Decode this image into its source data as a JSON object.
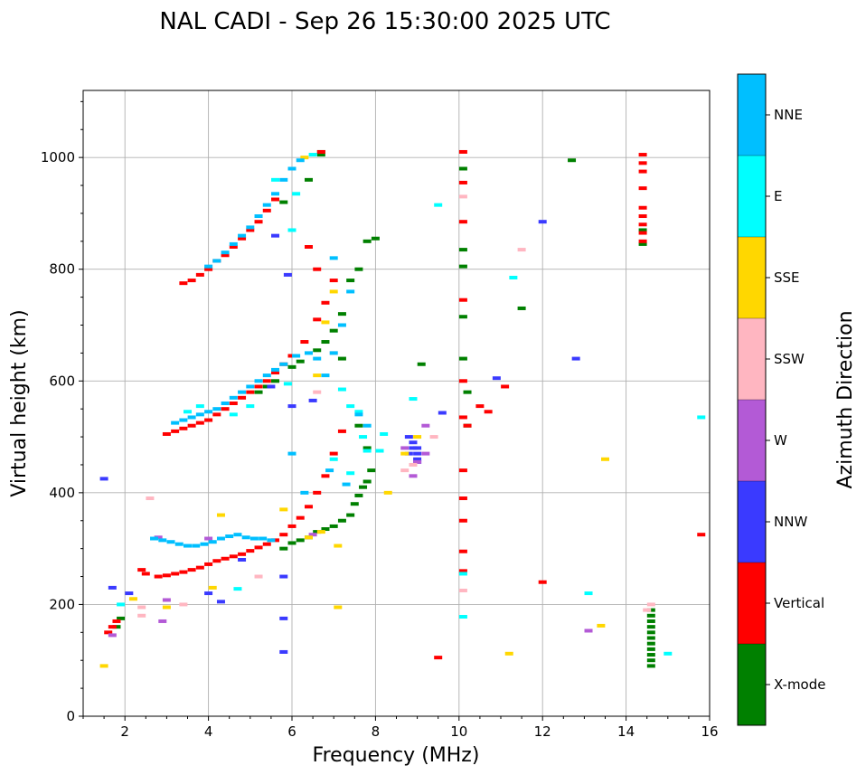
{
  "chart_data": {
    "type": "scatter",
    "title": "NAL CADI - Sep 26 15:30:00 2025 UTC",
    "xlabel": "Frequency (MHz)",
    "ylabel": "Virtual height (km)",
    "xlim": [
      1,
      16
    ],
    "ylim": [
      0,
      1120
    ],
    "xticks": [
      2,
      4,
      6,
      8,
      10,
      12,
      14,
      16
    ],
    "yticks": [
      0,
      200,
      400,
      600,
      800,
      1000
    ],
    "grid": true,
    "colorbar": {
      "label": "Azimuth Direction",
      "categories": [
        "X-mode",
        "Vertical",
        "NNW",
        "W",
        "SSW",
        "SSE",
        "E",
        "NNE"
      ],
      "colors": [
        "#008000",
        "#ff0000",
        "#3a3aff",
        "#b35ad6",
        "#ffb6c1",
        "#ffd700",
        "#00ffff",
        "#00bfff"
      ]
    },
    "series": [
      {
        "name": "X-mode",
        "points": [
          [
            1.8,
            160
          ],
          [
            1.9,
            175
          ],
          [
            5.8,
            300
          ],
          [
            6.0,
            310
          ],
          [
            6.2,
            315
          ],
          [
            6.4,
            320
          ],
          [
            6.6,
            330
          ],
          [
            6.8,
            335
          ],
          [
            7.0,
            340
          ],
          [
            7.2,
            350
          ],
          [
            7.4,
            360
          ],
          [
            7.5,
            380
          ],
          [
            7.6,
            395
          ],
          [
            7.7,
            410
          ],
          [
            7.8,
            420
          ],
          [
            7.9,
            440
          ],
          [
            5.2,
            580
          ],
          [
            5.4,
            590
          ],
          [
            5.6,
            600
          ],
          [
            6.0,
            625
          ],
          [
            6.2,
            635
          ],
          [
            6.6,
            655
          ],
          [
            6.8,
            670
          ],
          [
            7.0,
            690
          ],
          [
            7.2,
            720
          ],
          [
            7.4,
            780
          ],
          [
            7.6,
            800
          ],
          [
            7.8,
            850
          ],
          [
            8.0,
            855
          ],
          [
            7.2,
            640
          ],
          [
            7.6,
            520
          ],
          [
            7.8,
            480
          ],
          [
            5.8,
            920
          ],
          [
            6.4,
            960
          ],
          [
            6.7,
            1005
          ],
          [
            6.7,
            1010
          ],
          [
            10.1,
            980
          ],
          [
            10.1,
            835
          ],
          [
            10.1,
            805
          ],
          [
            10.1,
            715
          ],
          [
            10.1,
            640
          ],
          [
            10.2,
            580
          ],
          [
            10.2,
            520
          ],
          [
            11.5,
            730
          ],
          [
            12.7,
            995
          ],
          [
            9.1,
            630
          ],
          [
            14.6,
            190
          ],
          [
            14.6,
            180
          ],
          [
            14.6,
            170
          ],
          [
            14.6,
            160
          ],
          [
            14.6,
            150
          ],
          [
            14.6,
            140
          ],
          [
            14.6,
            130
          ],
          [
            14.6,
            120
          ],
          [
            14.6,
            110
          ],
          [
            14.6,
            100
          ],
          [
            14.6,
            90
          ],
          [
            14.4,
            870
          ],
          [
            14.4,
            845
          ]
        ]
      },
      {
        "name": "Vertical",
        "points": [
          [
            1.6,
            150
          ],
          [
            1.7,
            160
          ],
          [
            1.8,
            170
          ],
          [
            2.4,
            262
          ],
          [
            2.5,
            255
          ],
          [
            2.8,
            250
          ],
          [
            3.0,
            252
          ],
          [
            3.2,
            255
          ],
          [
            3.4,
            258
          ],
          [
            3.6,
            262
          ],
          [
            3.8,
            266
          ],
          [
            4.0,
            272
          ],
          [
            4.2,
            278
          ],
          [
            4.4,
            282
          ],
          [
            4.6,
            286
          ],
          [
            4.8,
            290
          ],
          [
            5.0,
            296
          ],
          [
            5.2,
            302
          ],
          [
            5.4,
            308
          ],
          [
            5.6,
            315
          ],
          [
            5.8,
            325
          ],
          [
            6.0,
            340
          ],
          [
            6.2,
            355
          ],
          [
            6.4,
            375
          ],
          [
            6.6,
            400
          ],
          [
            6.8,
            430
          ],
          [
            7.0,
            470
          ],
          [
            7.2,
            510
          ],
          [
            3.0,
            505
          ],
          [
            3.2,
            510
          ],
          [
            3.4,
            515
          ],
          [
            3.6,
            520
          ],
          [
            3.8,
            525
          ],
          [
            4.0,
            530
          ],
          [
            4.2,
            540
          ],
          [
            4.4,
            550
          ],
          [
            4.6,
            560
          ],
          [
            4.8,
            570
          ],
          [
            5.0,
            580
          ],
          [
            5.2,
            590
          ],
          [
            5.4,
            600
          ],
          [
            5.6,
            615
          ],
          [
            5.8,
            630
          ],
          [
            6.0,
            645
          ],
          [
            6.3,
            670
          ],
          [
            6.6,
            710
          ],
          [
            6.8,
            740
          ],
          [
            7.0,
            780
          ],
          [
            3.4,
            775
          ],
          [
            3.6,
            780
          ],
          [
            3.8,
            790
          ],
          [
            4.0,
            800
          ],
          [
            4.2,
            815
          ],
          [
            4.4,
            825
          ],
          [
            4.6,
            840
          ],
          [
            4.8,
            855
          ],
          [
            5.0,
            870
          ],
          [
            5.2,
            885
          ],
          [
            5.4,
            905
          ],
          [
            5.6,
            925
          ],
          [
            6.4,
            840
          ],
          [
            6.6,
            800
          ],
          [
            6.7,
            1010
          ],
          [
            10.1,
            1010
          ],
          [
            10.1,
            955
          ],
          [
            10.1,
            885
          ],
          [
            10.1,
            745
          ],
          [
            10.1,
            600
          ],
          [
            10.1,
            535
          ],
          [
            10.2,
            520
          ],
          [
            10.1,
            440
          ],
          [
            10.1,
            390
          ],
          [
            10.1,
            350
          ],
          [
            10.1,
            295
          ],
          [
            10.1,
            260
          ],
          [
            9.5,
            105
          ],
          [
            12.0,
            240
          ],
          [
            15.8,
            325
          ],
          [
            10.5,
            555
          ],
          [
            10.7,
            545
          ],
          [
            11.1,
            590
          ],
          [
            14.4,
            1005
          ],
          [
            14.4,
            990
          ],
          [
            14.4,
            975
          ],
          [
            14.4,
            945
          ],
          [
            14.4,
            910
          ],
          [
            14.4,
            895
          ],
          [
            14.4,
            880
          ],
          [
            14.4,
            865
          ],
          [
            14.4,
            850
          ]
        ]
      },
      {
        "name": "NNW",
        "points": [
          [
            1.5,
            425
          ],
          [
            1.7,
            230
          ],
          [
            2.1,
            220
          ],
          [
            4.0,
            220
          ],
          [
            4.3,
            205
          ],
          [
            6.0,
            555
          ],
          [
            6.5,
            565
          ],
          [
            8.8,
            500
          ],
          [
            8.9,
            490
          ],
          [
            8.9,
            480
          ],
          [
            9.0,
            470
          ],
          [
            9.0,
            460
          ],
          [
            8.8,
            470
          ],
          [
            9.0,
            480
          ],
          [
            9.0,
            455
          ],
          [
            9.6,
            543
          ],
          [
            10.9,
            605
          ],
          [
            12.8,
            640
          ],
          [
            5.8,
            115
          ],
          [
            5.8,
            175
          ],
          [
            5.8,
            250
          ],
          [
            4.8,
            280
          ],
          [
            5.5,
            590
          ],
          [
            5.9,
            790
          ],
          [
            5.6,
            860
          ],
          [
            12.0,
            885
          ]
        ]
      },
      {
        "name": "W",
        "points": [
          [
            1.7,
            145
          ],
          [
            2.8,
            320
          ],
          [
            3.0,
            208
          ],
          [
            4.0,
            318
          ],
          [
            9.2,
            520
          ],
          [
            8.9,
            430
          ],
          [
            9.0,
            455
          ],
          [
            13.1,
            153
          ],
          [
            2.9,
            170
          ],
          [
            6.5,
            325
          ],
          [
            8.7,
            480
          ],
          [
            9.2,
            470
          ]
        ]
      },
      {
        "name": "SSW",
        "points": [
          [
            2.4,
            180
          ],
          [
            2.4,
            195
          ],
          [
            2.6,
            390
          ],
          [
            3.4,
            200
          ],
          [
            5.2,
            250
          ],
          [
            8.7,
            440
          ],
          [
            8.9,
            450
          ],
          [
            11.5,
            835
          ],
          [
            10.1,
            930
          ],
          [
            10.1,
            225
          ],
          [
            14.5,
            190
          ],
          [
            14.6,
            200
          ],
          [
            6.6,
            580
          ],
          [
            7.0,
            650
          ],
          [
            9.4,
            500
          ]
        ]
      },
      {
        "name": "SSE",
        "points": [
          [
            1.5,
            90
          ],
          [
            2.2,
            210
          ],
          [
            3.0,
            195
          ],
          [
            4.3,
            360
          ],
          [
            4.1,
            230
          ],
          [
            6.4,
            320
          ],
          [
            6.7,
            330
          ],
          [
            7.1,
            305
          ],
          [
            7.1,
            195
          ],
          [
            8.3,
            400
          ],
          [
            8.7,
            470
          ],
          [
            13.5,
            460
          ],
          [
            13.4,
            162
          ],
          [
            11.2,
            112
          ],
          [
            6.6,
            610
          ],
          [
            6.8,
            705
          ],
          [
            6.3,
            1000
          ],
          [
            7.0,
            760
          ],
          [
            9.0,
            500
          ],
          [
            5.8,
            370
          ]
        ]
      },
      {
        "name": "E",
        "points": [
          [
            1.9,
            200
          ],
          [
            4.7,
            228
          ],
          [
            6.5,
            1005
          ],
          [
            5.9,
            595
          ],
          [
            7.2,
            585
          ],
          [
            7.4,
            555
          ],
          [
            7.6,
            545
          ],
          [
            7.7,
            500
          ],
          [
            7.8,
            475
          ],
          [
            8.1,
            475
          ],
          [
            8.2,
            505
          ],
          [
            8.9,
            568
          ],
          [
            9.5,
            915
          ],
          [
            10.1,
            178
          ],
          [
            10.1,
            255
          ],
          [
            13.1,
            220
          ],
          [
            15.0,
            112
          ],
          [
            15.8,
            535
          ],
          [
            11.3,
            785
          ],
          [
            6.0,
            870
          ],
          [
            6.1,
            935
          ],
          [
            5.6,
            960
          ],
          [
            3.5,
            545
          ],
          [
            3.8,
            555
          ],
          [
            4.6,
            540
          ],
          [
            5.0,
            555
          ],
          [
            7.0,
            460
          ],
          [
            7.4,
            435
          ]
        ]
      },
      {
        "name": "NNE",
        "points": [
          [
            2.7,
            318
          ],
          [
            2.9,
            315
          ],
          [
            3.1,
            312
          ],
          [
            3.3,
            308
          ],
          [
            3.5,
            305
          ],
          [
            3.7,
            305
          ],
          [
            3.9,
            308
          ],
          [
            4.1,
            312
          ],
          [
            4.3,
            318
          ],
          [
            4.5,
            322
          ],
          [
            4.7,
            325
          ],
          [
            4.9,
            320
          ],
          [
            5.1,
            318
          ],
          [
            5.3,
            318
          ],
          [
            5.5,
            315
          ],
          [
            3.2,
            525
          ],
          [
            3.4,
            530
          ],
          [
            3.6,
            535
          ],
          [
            3.8,
            540
          ],
          [
            4.0,
            545
          ],
          [
            4.2,
            550
          ],
          [
            4.4,
            560
          ],
          [
            4.6,
            570
          ],
          [
            4.8,
            580
          ],
          [
            5.0,
            590
          ],
          [
            5.2,
            600
          ],
          [
            5.4,
            610
          ],
          [
            5.6,
            620
          ],
          [
            5.8,
            630
          ],
          [
            6.1,
            645
          ],
          [
            4.0,
            805
          ],
          [
            4.2,
            815
          ],
          [
            4.4,
            830
          ],
          [
            4.6,
            845
          ],
          [
            4.8,
            860
          ],
          [
            5.0,
            875
          ],
          [
            5.2,
            895
          ],
          [
            5.4,
            915
          ],
          [
            5.6,
            935
          ],
          [
            5.8,
            960
          ],
          [
            6.0,
            980
          ],
          [
            6.2,
            995
          ],
          [
            6.8,
            610
          ],
          [
            7.0,
            650
          ],
          [
            6.4,
            650
          ],
          [
            6.6,
            640
          ],
          [
            7.2,
            700
          ],
          [
            7.4,
            760
          ],
          [
            7.0,
            820
          ],
          [
            7.6,
            540
          ],
          [
            7.8,
            520
          ],
          [
            6.0,
            470
          ],
          [
            6.3,
            400
          ],
          [
            6.9,
            440
          ],
          [
            7.3,
            415
          ]
        ]
      }
    ]
  }
}
